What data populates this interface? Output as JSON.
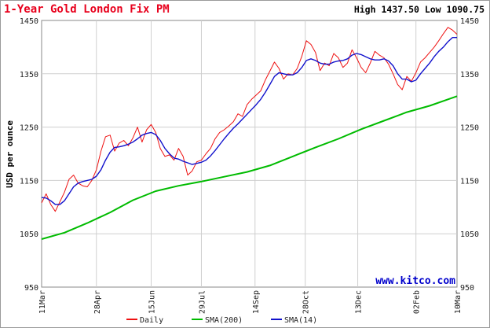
{
  "colors": {
    "title": "#e8001c",
    "daily": "#ee1111",
    "sma200": "#00bb00",
    "sma14": "#1111cc",
    "watermark": "#0000cc",
    "grid": "#cfcfcf",
    "frame": "#9a9a9a"
  },
  "header": {
    "high_low": "High 1437.50 Low 1090.75"
  },
  "watermark": "www.kitco.com",
  "chart_data": {
    "type": "line",
    "title": "1-Year Gold London Fix PM",
    "xlabel": "",
    "ylabel": "USD per ounce",
    "ylim": [
      950,
      1450
    ],
    "yticks": [
      "950",
      "1050",
      "1150",
      "1250",
      "1350",
      "1450"
    ],
    "yticks_values": [
      950,
      1050,
      1150,
      1250,
      1350,
      1450
    ],
    "xticks": [
      "11Mar",
      "28Apr",
      "15Jun",
      "29Jul",
      "14Sep",
      "28Oct",
      "13Dec",
      "02Feb",
      "10Mar"
    ],
    "xticks_days": [
      0,
      48,
      96,
      140,
      187,
      231,
      277,
      328,
      364
    ],
    "grid": true,
    "legend_position": "bottom",
    "series": [
      {
        "name": "Daily",
        "x_days": [
          0,
          4,
          8,
          12,
          16,
          20,
          24,
          28,
          32,
          36,
          40,
          44,
          48,
          52,
          56,
          60,
          64,
          68,
          72,
          76,
          80,
          84,
          88,
          92,
          96,
          100,
          104,
          108,
          112,
          116,
          120,
          124,
          128,
          132,
          136,
          140,
          144,
          148,
          152,
          156,
          160,
          164,
          168,
          172,
          176,
          180,
          184,
          188,
          192,
          196,
          200,
          204,
          208,
          212,
          216,
          220,
          224,
          228,
          232,
          236,
          240,
          244,
          248,
          252,
          256,
          260,
          264,
          268,
          272,
          276,
          280,
          284,
          288,
          292,
          296,
          300,
          304,
          308,
          312,
          316,
          320,
          324,
          328,
          332,
          336,
          340,
          344,
          348,
          352,
          356,
          360,
          364
        ],
        "values": [
          1108,
          1125,
          1105,
          1092,
          1110,
          1128,
          1152,
          1160,
          1145,
          1140,
          1138,
          1150,
          1170,
          1205,
          1232,
          1235,
          1205,
          1220,
          1225,
          1215,
          1230,
          1250,
          1222,
          1245,
          1255,
          1240,
          1210,
          1195,
          1198,
          1188,
          1210,
          1195,
          1160,
          1168,
          1185,
          1188,
          1200,
          1210,
          1228,
          1240,
          1245,
          1252,
          1260,
          1275,
          1270,
          1292,
          1302,
          1310,
          1318,
          1338,
          1355,
          1372,
          1360,
          1340,
          1350,
          1348,
          1360,
          1383,
          1412,
          1405,
          1390,
          1356,
          1370,
          1365,
          1388,
          1380,
          1362,
          1370,
          1395,
          1380,
          1362,
          1352,
          1370,
          1392,
          1385,
          1380,
          1368,
          1350,
          1330,
          1320,
          1345,
          1336,
          1352,
          1372,
          1380,
          1390,
          1400,
          1412,
          1425,
          1437,
          1432,
          1424
        ]
      },
      {
        "name": "SMA(200)",
        "x_days": [
          0,
          20,
          40,
          60,
          80,
          100,
          120,
          140,
          160,
          180,
          200,
          220,
          240,
          260,
          280,
          300,
          320,
          340,
          364
        ],
        "values": [
          1040,
          1052,
          1070,
          1090,
          1113,
          1130,
          1140,
          1148,
          1157,
          1166,
          1178,
          1195,
          1212,
          1228,
          1246,
          1262,
          1278,
          1290,
          1308
        ]
      },
      {
        "name": "SMA(14)",
        "x_days": [
          0,
          4,
          8,
          12,
          16,
          20,
          24,
          28,
          32,
          36,
          40,
          44,
          48,
          52,
          56,
          60,
          64,
          68,
          72,
          76,
          80,
          84,
          88,
          92,
          96,
          100,
          104,
          108,
          112,
          116,
          120,
          124,
          128,
          132,
          136,
          140,
          144,
          148,
          152,
          156,
          160,
          164,
          168,
          172,
          176,
          180,
          184,
          188,
          192,
          196,
          200,
          204,
          208,
          212,
          216,
          220,
          224,
          228,
          232,
          236,
          240,
          244,
          248,
          252,
          256,
          260,
          264,
          268,
          272,
          276,
          280,
          284,
          288,
          292,
          296,
          300,
          304,
          308,
          312,
          316,
          320,
          324,
          328,
          332,
          336,
          340,
          344,
          348,
          352,
          356,
          360,
          364
        ],
        "values": [
          1118,
          1117,
          1112,
          1105,
          1105,
          1112,
          1125,
          1138,
          1145,
          1148,
          1150,
          1152,
          1158,
          1170,
          1188,
          1203,
          1212,
          1213,
          1215,
          1218,
          1222,
          1228,
          1235,
          1238,
          1240,
          1236,
          1225,
          1210,
          1200,
          1192,
          1190,
          1186,
          1183,
          1180,
          1182,
          1184,
          1188,
          1196,
          1206,
          1217,
          1228,
          1238,
          1248,
          1256,
          1265,
          1274,
          1283,
          1292,
          1302,
          1315,
          1330,
          1345,
          1352,
          1350,
          1348,
          1348,
          1352,
          1362,
          1375,
          1378,
          1375,
          1370,
          1368,
          1368,
          1372,
          1374,
          1375,
          1378,
          1385,
          1388,
          1386,
          1382,
          1378,
          1376,
          1376,
          1378,
          1374,
          1365,
          1350,
          1340,
          1340,
          1335,
          1338,
          1350,
          1360,
          1370,
          1382,
          1392,
          1400,
          1410,
          1418,
          1418
        ]
      }
    ]
  }
}
